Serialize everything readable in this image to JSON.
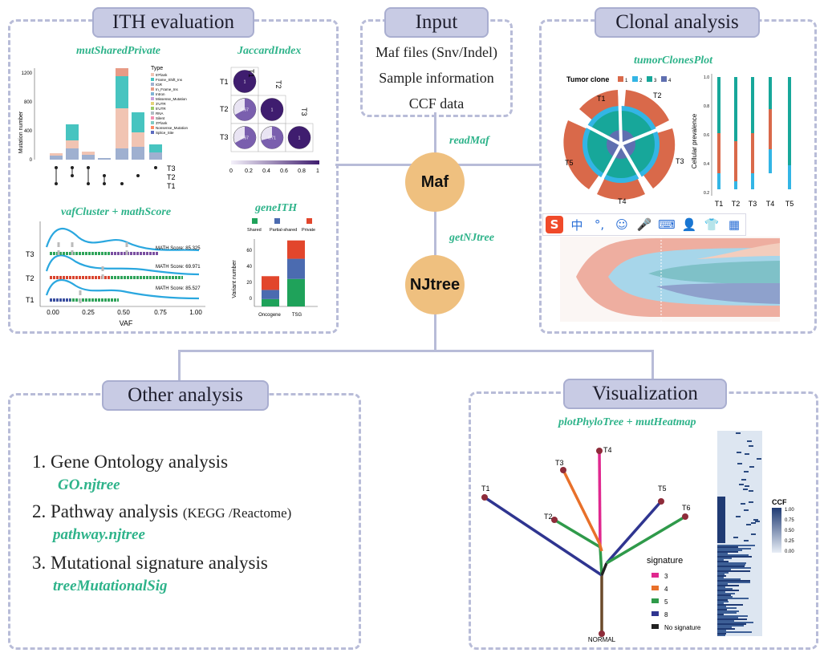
{
  "sections": {
    "ith": {
      "title": "ITH evaluation"
    },
    "input": {
      "title": "Input",
      "lines": [
        "Maf files (Snv/Indel)",
        "Sample information",
        "CCF data"
      ]
    },
    "clonal": {
      "title": "Clonal analysis"
    },
    "other": {
      "title": "Other analysis"
    },
    "visual": {
      "title": "Visualization"
    }
  },
  "functions": {
    "mutShared": "mutSharedPrivate",
    "jaccard": "JaccardIndex",
    "vaf": "vafCluster + mathScore",
    "geneITH": "geneITH",
    "clones": "tumorClonesPlot",
    "readMaf": "readMaf",
    "getNJtree": "getNJtree",
    "phylo": "plotPhyloTree + mutHeatmap"
  },
  "nodes": {
    "maf": "Maf",
    "njtree": "NJtree"
  },
  "other_list": [
    {
      "num": "1.",
      "text": "Gene Ontology analysis",
      "extra": "",
      "fn": "GO.njtree"
    },
    {
      "num": "2.",
      "text": "Pathway analysis",
      "extra": "(KEGG /Reactome)",
      "fn": "pathway.njtree"
    },
    {
      "num": "3.",
      "text": "Mutational signature analysis",
      "extra": "",
      "fn": "treeMutationalSig"
    }
  ],
  "mutshared": {
    "ylabel": "Mutation number",
    "yticks": [
      "1200",
      "800",
      "400",
      "0"
    ],
    "legend_title": "Type",
    "legend": [
      "5'Flank",
      "Frame_Shift_Ins",
      "IGR",
      "In_Frame_Ins",
      "Intron",
      "Missense_Mutation",
      "3'UTR",
      "5'UTR",
      "RNA",
      "Silent",
      "3'Flank",
      "Nonsense_Mutation",
      "Splice_Site"
    ],
    "samples": [
      "T3",
      "T2",
      "T1"
    ]
  },
  "jaccard": {
    "rows": [
      "T1",
      "T2",
      "T3"
    ],
    "cols": [
      "T1",
      "T2",
      "T3"
    ],
    "cells": [
      "1",
      "0.67",
      "1",
      "0.67",
      "0.71",
      "1"
    ],
    "scale": [
      "0",
      "0.2",
      "0.4",
      "0.6",
      "0.8",
      "1"
    ]
  },
  "vafcluster": {
    "samples": [
      "T3",
      "T2",
      "T1"
    ],
    "scores": [
      "MATH Score: 85.325",
      "MATH Score: 69.971",
      "MATH Score: 85.527"
    ],
    "xlabel": "VAF",
    "xticks": [
      "0.00",
      "0.25",
      "0.50",
      "0.75",
      "1.00"
    ]
  },
  "geneith": {
    "legend": [
      "Shared",
      "Partial-shared",
      "Private"
    ],
    "colors": [
      "#1fa25a",
      "#4b6bb0",
      "#e2462c"
    ],
    "ylabel": "Variant number",
    "yticks": [
      "60",
      "40",
      "20",
      "0"
    ],
    "categories": [
      "Oncogene",
      "TSG"
    ],
    "values": [
      [
        8,
        10,
        15
      ],
      [
        30,
        22,
        20
      ]
    ]
  },
  "clones": {
    "legend_title": "Tumor clone",
    "legend": [
      "1",
      "2",
      "3",
      "4"
    ],
    "colors": [
      "#d9694a",
      "#33b5e5",
      "#17a79a",
      "#5f6fb0"
    ],
    "samples": [
      "T1",
      "T2",
      "T3",
      "T4",
      "T5"
    ],
    "ylabel": "Cellular prevalence",
    "yticks": [
      "1.0",
      "0.8",
      "0.6",
      "0.4",
      "0.2"
    ]
  },
  "phylo": {
    "tips": [
      "T1",
      "T2",
      "T3",
      "T4",
      "T5",
      "T6"
    ],
    "root": "NORMAL",
    "sig_title": "signature",
    "signatures": [
      {
        "label": "3",
        "color": "#e0288f"
      },
      {
        "label": "4",
        "color": "#e8702a"
      },
      {
        "label": "5",
        "color": "#2f9a4a"
      },
      {
        "label": "8",
        "color": "#2f3590"
      },
      {
        "label": "No signature",
        "color": "#222222"
      }
    ],
    "ccf_title": "CCF",
    "ccf_ticks": [
      "1.00",
      "0.75",
      "0.50",
      "0.25",
      "0.00"
    ]
  },
  "ime_icons": [
    "sogou-logo-icon",
    "chinese-mode-icon",
    "punctuation-icon",
    "emoji-icon",
    "microphone-icon",
    "keyboard-icon",
    "user-icon",
    "shirt-icon",
    "grid-icon"
  ],
  "ime_labels": {
    "mode": "中",
    "punct": "°,"
  }
}
